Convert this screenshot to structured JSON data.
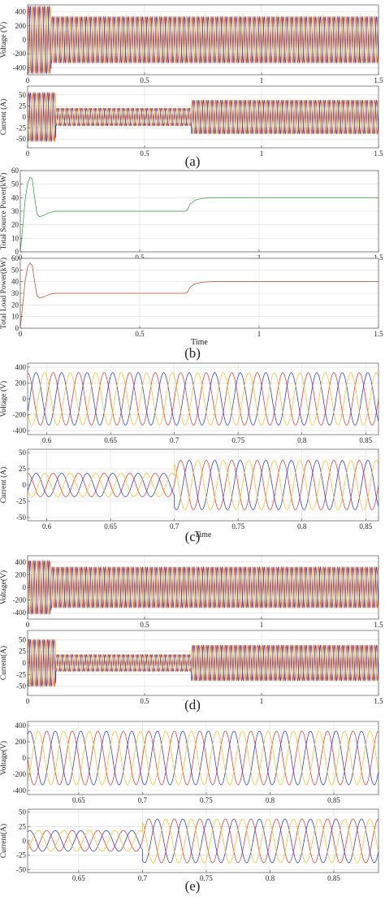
{
  "chart_data": [
    {
      "id": "a1",
      "type": "line",
      "ylabel": "Voltage (V)",
      "xlabel": "",
      "xlim": [
        0,
        1.5
      ],
      "ylim": [
        -500,
        500
      ],
      "xticks": [
        0,
        0.5,
        1,
        1.5
      ],
      "xtick_labels": [
        "0",
        "0.5",
        "1",
        "1.5"
      ],
      "yticks": [
        400,
        200,
        0,
        -200,
        -400
      ],
      "ytick_labels": [
        "400",
        "200",
        "0",
        "-200",
        "-400"
      ],
      "grid": true,
      "series": [
        {
          "color": "#e8342e",
          "phase_deg": 0
        },
        {
          "color": "#2438d8",
          "phase_deg": -120
        },
        {
          "color": "#f2c021",
          "phase_deg": 120
        }
      ],
      "waveform": {
        "freq_hz": 50,
        "segments": [
          {
            "t0": 0,
            "t1": 0.1,
            "amplitude": 480
          },
          {
            "t0": 0.1,
            "t1": 1.5,
            "amplitude": 330
          }
        ]
      }
    },
    {
      "id": "a2",
      "type": "line",
      "ylabel": "Current (A)",
      "xlabel": "",
      "xlim": [
        0,
        1.5
      ],
      "ylim": [
        -70,
        70
      ],
      "xticks": [
        0,
        0.5,
        1,
        1.5
      ],
      "xtick_labels": [
        "0",
        "0.5",
        "1",
        "1.5"
      ],
      "yticks": [
        50,
        25,
        0,
        -25,
        -50
      ],
      "ytick_labels": [
        "50",
        "25",
        "0",
        "-25",
        "-50"
      ],
      "grid": true,
      "series": [
        {
          "color": "#e8342e",
          "phase_deg": 0
        },
        {
          "color": "#2438d8",
          "phase_deg": -120
        },
        {
          "color": "#f2c021",
          "phase_deg": 120
        }
      ],
      "waveform": {
        "freq_hz": 50,
        "segments": [
          {
            "t0": 0,
            "t1": 0.12,
            "amplitude": 55
          },
          {
            "t0": 0.12,
            "t1": 0.7,
            "amplitude": 20
          },
          {
            "t0": 0.7,
            "t1": 1.5,
            "amplitude": 38
          }
        ]
      }
    },
    {
      "id": "b1",
      "type": "line",
      "ylabel": "Total Source Power(kW)",
      "xlabel": "",
      "xlim": [
        0,
        1.5
      ],
      "ylim": [
        0,
        60
      ],
      "xticks": [
        0,
        0.5,
        1,
        1.5
      ],
      "xtick_labels": [
        "0",
        "0.5",
        "1",
        "1.5"
      ],
      "yticks": [
        60,
        50,
        40,
        30,
        20,
        10,
        0
      ],
      "ytick_labels": [
        "60",
        "50",
        "40",
        "30",
        "20",
        "10",
        "0"
      ],
      "grid": true,
      "series": [
        {
          "color": "#3a9e3a",
          "x": [
            0,
            0.01,
            0.02,
            0.03,
            0.04,
            0.05,
            0.06,
            0.07,
            0.08,
            0.1,
            0.12,
            0.15,
            0.2,
            0.3,
            0.5,
            0.69,
            0.7,
            0.71,
            0.73,
            0.76,
            0.8,
            1.0,
            1.5
          ],
          "y": [
            0,
            18,
            38,
            50,
            55,
            54,
            40,
            28,
            26,
            27,
            29,
            30,
            30,
            30,
            30,
            30,
            31,
            35,
            38,
            39.5,
            40,
            40,
            40
          ]
        }
      ]
    },
    {
      "id": "b2",
      "type": "line",
      "ylabel": "Total Load Power(kW)",
      "xlabel": "Time",
      "xlim": [
        0,
        1.5
      ],
      "ylim": [
        0,
        60
      ],
      "xticks": [
        0,
        0.5,
        1,
        1.5
      ],
      "xtick_labels": [
        "0",
        "0.5",
        "1",
        "1.5"
      ],
      "yticks": [
        60,
        50,
        40,
        30,
        20,
        10,
        0
      ],
      "ytick_labels": [
        "60",
        "50",
        "40",
        "30",
        "20",
        "10",
        "0"
      ],
      "grid": true,
      "series": [
        {
          "color": "#c04a2a",
          "x": [
            0,
            0.01,
            0.02,
            0.03,
            0.04,
            0.05,
            0.06,
            0.07,
            0.08,
            0.1,
            0.12,
            0.15,
            0.2,
            0.3,
            0.5,
            0.69,
            0.7,
            0.71,
            0.73,
            0.76,
            0.8,
            1.0,
            1.5
          ],
          "y": [
            0,
            20,
            40,
            52,
            56,
            54,
            40,
            28,
            26,
            27,
            29,
            30,
            30,
            30,
            30,
            30,
            31,
            35,
            38,
            39.5,
            40,
            40,
            40
          ]
        }
      ]
    },
    {
      "id": "c1",
      "type": "line",
      "ylabel": "Voltage (V)",
      "xlabel": "",
      "xlim": [
        0.585,
        0.86
      ],
      "ylim": [
        -450,
        450
      ],
      "xticks": [
        0.6,
        0.65,
        0.7,
        0.75,
        0.8,
        0.85
      ],
      "xtick_labels": [
        "0.6",
        "0.65",
        "0.7",
        "0.75",
        "0.8",
        "0.85"
      ],
      "yticks": [
        400,
        200,
        0,
        -200,
        -400
      ],
      "ytick_labels": [
        "400",
        "200",
        "0",
        "-200",
        "-400"
      ],
      "grid": true,
      "series": [
        {
          "color": "#e8342e",
          "phase_deg": 0
        },
        {
          "color": "#2438d8",
          "phase_deg": -120
        },
        {
          "color": "#f2c021",
          "phase_deg": 120
        }
      ],
      "waveform": {
        "freq_hz": 50,
        "segments": [
          {
            "t0": 0.585,
            "t1": 0.86,
            "amplitude": 330
          }
        ]
      }
    },
    {
      "id": "c2",
      "type": "line",
      "ylabel": "Current (A)",
      "xlabel": "Time",
      "xlim": [
        0.585,
        0.86
      ],
      "ylim": [
        -55,
        55
      ],
      "xticks": [
        0.6,
        0.65,
        0.7,
        0.75,
        0.8,
        0.85
      ],
      "xtick_labels": [
        "0.6",
        "0.65",
        "0.7",
        "0.75",
        "0.8",
        "0.85"
      ],
      "yticks": [
        50,
        25,
        0,
        -25,
        -50
      ],
      "ytick_labels": [
        "50",
        "25",
        "0",
        "-25",
        "-50"
      ],
      "grid": true,
      "series": [
        {
          "color": "#e8342e",
          "phase_deg": 0
        },
        {
          "color": "#2438d8",
          "phase_deg": -120
        },
        {
          "color": "#f2c021",
          "phase_deg": 120
        }
      ],
      "waveform": {
        "freq_hz": 50,
        "segments": [
          {
            "t0": 0.585,
            "t1": 0.7,
            "amplitude": 18
          },
          {
            "t0": 0.7,
            "t1": 0.86,
            "amplitude": 38
          }
        ]
      }
    },
    {
      "id": "d1",
      "type": "line",
      "ylabel": "Voltage(V)",
      "xlabel": "",
      "xlim": [
        0,
        1.5
      ],
      "ylim": [
        -500,
        500
      ],
      "xticks": [
        0,
        0.5,
        1,
        1.5
      ],
      "xtick_labels": [
        "0",
        "0.5",
        "1",
        "1.5"
      ],
      "yticks": [
        400,
        200,
        0,
        -200,
        -400
      ],
      "ytick_labels": [
        "400",
        "200",
        "0",
        "-200",
        "-400"
      ],
      "grid": true,
      "series": [
        {
          "color": "#e8342e",
          "phase_deg": 0
        },
        {
          "color": "#2438d8",
          "phase_deg": -120
        },
        {
          "color": "#f2c021",
          "phase_deg": 120
        }
      ],
      "waveform": {
        "freq_hz": 50,
        "segments": [
          {
            "t0": 0,
            "t1": 0.1,
            "amplitude": 420
          },
          {
            "t0": 0.1,
            "t1": 1.5,
            "amplitude": 320
          }
        ]
      }
    },
    {
      "id": "d2",
      "type": "line",
      "ylabel": "Current(A)",
      "xlabel": "",
      "xlim": [
        0,
        1.5
      ],
      "ylim": [
        -70,
        70
      ],
      "xticks": [
        0,
        0.5,
        1,
        1.5
      ],
      "xtick_labels": [
        "0",
        "0.5",
        "1",
        "1.5"
      ],
      "yticks": [
        50,
        25,
        0,
        -25,
        -50
      ],
      "ytick_labels": [
        "50",
        "25",
        "0",
        "-25",
        "-50"
      ],
      "grid": true,
      "series": [
        {
          "color": "#e8342e",
          "phase_deg": 0
        },
        {
          "color": "#2438d8",
          "phase_deg": -120
        },
        {
          "color": "#f2c021",
          "phase_deg": 120
        }
      ],
      "waveform": {
        "freq_hz": 50,
        "segments": [
          {
            "t0": 0,
            "t1": 0.12,
            "amplitude": 50
          },
          {
            "t0": 0.12,
            "t1": 0.7,
            "amplitude": 18
          },
          {
            "t0": 0.7,
            "t1": 1.5,
            "amplitude": 38
          }
        ]
      }
    },
    {
      "id": "e1",
      "type": "line",
      "ylabel": "Voltage(V)",
      "xlabel": "",
      "xlim": [
        0.61,
        0.885
      ],
      "ylim": [
        -450,
        450
      ],
      "xticks": [
        0.65,
        0.7,
        0.75,
        0.8,
        0.85
      ],
      "xtick_labels": [
        "0.65",
        "0.7",
        "0.75",
        "0.8",
        "0.85"
      ],
      "yticks": [
        400,
        200,
        0,
        -200,
        -400
      ],
      "ytick_labels": [
        "400",
        "200",
        "0",
        "-200",
        "-400"
      ],
      "grid": true,
      "series": [
        {
          "color": "#e8342e",
          "phase_deg": 0
        },
        {
          "color": "#2438d8",
          "phase_deg": -120
        },
        {
          "color": "#f2c021",
          "phase_deg": 120
        }
      ],
      "waveform": {
        "freq_hz": 50,
        "segments": [
          {
            "t0": 0.61,
            "t1": 0.885,
            "amplitude": 330
          }
        ]
      }
    },
    {
      "id": "e2",
      "type": "line",
      "ylabel": "Current(A)",
      "xlabel": "",
      "xlim": [
        0.61,
        0.885
      ],
      "ylim": [
        -55,
        55
      ],
      "xticks": [
        0.65,
        0.7,
        0.75,
        0.8,
        0.85
      ],
      "xtick_labels": [
        "0.65",
        "0.7",
        "0.75",
        "0.8",
        "0.85"
      ],
      "yticks": [
        50,
        25,
        0,
        -25,
        -50
      ],
      "ytick_labels": [
        "50",
        "25",
        "0",
        "-25",
        "-50"
      ],
      "grid": true,
      "series": [
        {
          "color": "#e8342e",
          "phase_deg": 0
        },
        {
          "color": "#2438d8",
          "phase_deg": -120
        },
        {
          "color": "#f2c021",
          "phase_deg": 120
        }
      ],
      "waveform": {
        "freq_hz": 50,
        "segments": [
          {
            "t0": 0.61,
            "t1": 0.7,
            "amplitude": 18
          },
          {
            "t0": 0.7,
            "t1": 0.885,
            "amplitude": 38
          }
        ]
      }
    }
  ],
  "captions": [
    "(a)",
    "(b)",
    "(c)",
    "(d)",
    "(e)"
  ]
}
